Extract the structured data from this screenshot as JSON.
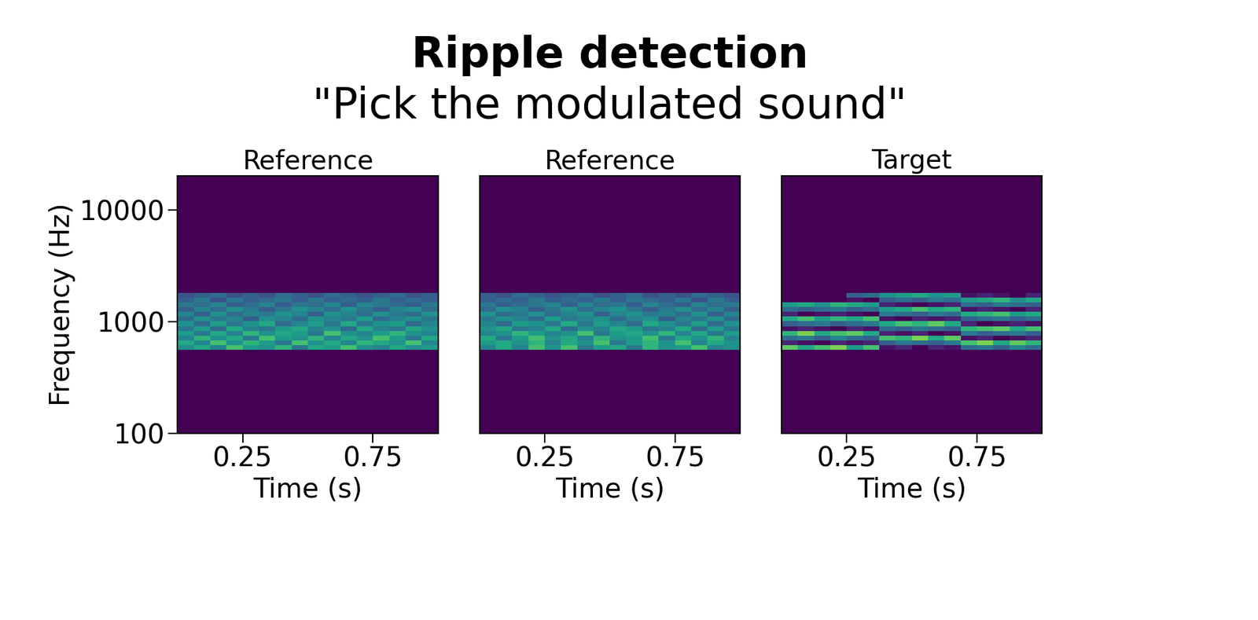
{
  "title": "Ripple detection",
  "subtitle": "\"Pick the modulated sound\"",
  "chart_data": [
    {
      "type": "heatmap",
      "title": "Reference",
      "xlabel": "Time (s)",
      "ylabel": "Frequency (Hz)",
      "xlim": [
        0,
        1
      ],
      "xticks": [
        0.25,
        0.75
      ],
      "ylim": [
        100,
        20000
      ],
      "yticks": [
        100,
        1000,
        10000
      ],
      "log": "y",
      "color_range": [
        0,
        1
      ],
      "time_edges": [
        0,
        0.0625,
        0.125,
        0.1875,
        0.25,
        0.3125,
        0.375,
        0.4375,
        0.5,
        0.5625,
        0.625,
        0.6875,
        0.75,
        0.8125,
        0.875,
        0.9375,
        1
      ],
      "freq_edges": [
        560,
        617,
        680,
        750,
        826,
        911,
        1004,
        1106,
        1219,
        1344,
        1481,
        1633,
        1800
      ],
      "cells": [
        [
          0.5,
          0.6,
          0.45,
          0.7,
          0.55,
          0.5,
          0.65,
          0.4,
          0.6,
          0.55,
          0.7,
          0.5,
          0.45,
          0.6,
          0.5,
          0.55
        ],
        [
          0.6,
          0.45,
          0.7,
          0.5,
          0.65,
          0.55,
          0.4,
          0.7,
          0.5,
          0.6,
          0.45,
          0.65,
          0.6,
          0.5,
          0.7,
          0.45
        ],
        [
          0.45,
          0.65,
          0.5,
          0.6,
          0.4,
          0.7,
          0.55,
          0.5,
          0.65,
          0.45,
          0.6,
          0.5,
          0.7,
          0.55,
          0.4,
          0.6
        ],
        [
          0.55,
          0.4,
          0.6,
          0.45,
          0.65,
          0.5,
          0.6,
          0.55,
          0.4,
          0.7,
          0.5,
          0.45,
          0.55,
          0.65,
          0.5,
          0.45
        ],
        [
          0.4,
          0.55,
          0.35,
          0.6,
          0.45,
          0.4,
          0.55,
          0.6,
          0.45,
          0.5,
          0.35,
          0.6,
          0.45,
          0.4,
          0.6,
          0.5
        ],
        [
          0.5,
          0.35,
          0.55,
          0.4,
          0.5,
          0.6,
          0.35,
          0.45,
          0.55,
          0.4,
          0.6,
          0.4,
          0.5,
          0.55,
          0.35,
          0.45
        ],
        [
          0.35,
          0.5,
          0.4,
          0.45,
          0.3,
          0.5,
          0.45,
          0.35,
          0.5,
          0.45,
          0.4,
          0.55,
          0.35,
          0.45,
          0.5,
          0.4
        ],
        [
          0.45,
          0.3,
          0.5,
          0.35,
          0.45,
          0.4,
          0.5,
          0.45,
          0.3,
          0.5,
          0.45,
          0.35,
          0.5,
          0.4,
          0.35,
          0.5
        ],
        [
          0.3,
          0.45,
          0.35,
          0.5,
          0.4,
          0.3,
          0.4,
          0.5,
          0.45,
          0.35,
          0.5,
          0.4,
          0.3,
          0.45,
          0.5,
          0.35
        ],
        [
          0.4,
          0.35,
          0.45,
          0.3,
          0.35,
          0.45,
          0.3,
          0.4,
          0.35,
          0.45,
          0.3,
          0.45,
          0.4,
          0.35,
          0.3,
          0.4
        ],
        [
          0.3,
          0.4,
          0.25,
          0.4,
          0.3,
          0.35,
          0.4,
          0.3,
          0.4,
          0.3,
          0.35,
          0.3,
          0.4,
          0.3,
          0.35,
          0.3
        ],
        [
          0.25,
          0.3,
          0.35,
          0.25,
          0.3,
          0.25,
          0.35,
          0.3,
          0.25,
          0.35,
          0.3,
          0.25,
          0.3,
          0.35,
          0.25,
          0.3
        ]
      ]
    },
    {
      "type": "heatmap",
      "title": "Reference",
      "xlabel": "Time (s)",
      "xlim": [
        0,
        1
      ],
      "xticks": [
        0.25,
        0.75
      ],
      "ylim": [
        100,
        20000
      ],
      "tick_labels": "x",
      "log": "y",
      "color_range": [
        0,
        1
      ],
      "time_edges": [
        0,
        0.0625,
        0.125,
        0.1875,
        0.25,
        0.3125,
        0.375,
        0.4375,
        0.5,
        0.5625,
        0.625,
        0.6875,
        0.75,
        0.8125,
        0.875,
        0.9375,
        1
      ],
      "freq_edges": [
        560,
        617,
        680,
        750,
        826,
        911,
        1004,
        1106,
        1219,
        1344,
        1481,
        1633,
        1800
      ],
      "cells": [
        [
          0.45,
          0.6,
          0.45,
          0.7,
          0.5,
          0.7,
          0.4,
          0.55,
          0.6,
          0.4,
          0.65,
          0.5,
          0.55,
          0.7,
          0.45,
          0.5
        ],
        [
          0.55,
          0.6,
          0.5,
          0.65,
          0.45,
          0.6,
          0.5,
          0.7,
          0.4,
          0.55,
          0.65,
          0.5,
          0.7,
          0.45,
          0.6,
          0.5
        ],
        [
          0.6,
          0.4,
          0.55,
          0.7,
          0.5,
          0.6,
          0.45,
          0.65,
          0.5,
          0.55,
          0.7,
          0.4,
          0.6,
          0.5,
          0.65,
          0.45
        ],
        [
          0.45,
          0.5,
          0.65,
          0.55,
          0.45,
          0.5,
          0.7,
          0.4,
          0.55,
          0.6,
          0.5,
          0.65,
          0.45,
          0.6,
          0.4,
          0.55
        ],
        [
          0.5,
          0.6,
          0.4,
          0.45,
          0.6,
          0.35,
          0.5,
          0.45,
          0.6,
          0.55,
          0.4,
          0.45,
          0.6,
          0.35,
          0.55,
          0.4
        ],
        [
          0.45,
          0.35,
          0.55,
          0.5,
          0.4,
          0.6,
          0.4,
          0.55,
          0.45,
          0.35,
          0.6,
          0.5,
          0.4,
          0.55,
          0.35,
          0.5
        ],
        [
          0.4,
          0.5,
          0.45,
          0.35,
          0.55,
          0.4,
          0.45,
          0.5,
          0.35,
          0.45,
          0.5,
          0.3,
          0.45,
          0.4,
          0.5,
          0.35
        ],
        [
          0.5,
          0.35,
          0.4,
          0.5,
          0.35,
          0.45,
          0.5,
          0.3,
          0.45,
          0.5,
          0.4,
          0.45,
          0.35,
          0.5,
          0.3,
          0.45
        ],
        [
          0.35,
          0.5,
          0.45,
          0.3,
          0.4,
          0.5,
          0.35,
          0.45,
          0.5,
          0.4,
          0.3,
          0.4,
          0.5,
          0.35,
          0.45,
          0.3
        ],
        [
          0.4,
          0.3,
          0.35,
          0.4,
          0.45,
          0.3,
          0.45,
          0.35,
          0.4,
          0.3,
          0.45,
          0.35,
          0.3,
          0.45,
          0.35,
          0.4
        ],
        [
          0.3,
          0.35,
          0.3,
          0.4,
          0.3,
          0.35,
          0.3,
          0.4,
          0.3,
          0.4,
          0.35,
          0.3,
          0.4,
          0.25,
          0.4,
          0.3
        ],
        [
          0.3,
          0.25,
          0.35,
          0.3,
          0.25,
          0.3,
          0.35,
          0.25,
          0.3,
          0.35,
          0.25,
          0.3,
          0.25,
          0.35,
          0.3,
          0.25
        ]
      ]
    },
    {
      "type": "heatmap",
      "title": "Target",
      "xlabel": "Time (s)",
      "xlim": [
        0,
        1
      ],
      "xticks": [
        0.25,
        0.75
      ],
      "ylim": [
        100,
        20000
      ],
      "tick_labels": "x",
      "log": "y",
      "color_range": [
        0,
        1
      ],
      "time_edges": [
        0,
        0.0625,
        0.125,
        0.1875,
        0.25,
        0.3125,
        0.375,
        0.4375,
        0.5,
        0.5625,
        0.625,
        0.6875,
        0.75,
        0.8125,
        0.875,
        0.9375,
        1
      ],
      "freq_edges": [
        560,
        617,
        680,
        750,
        826,
        911,
        1004,
        1106,
        1219,
        1344,
        1481,
        1633,
        1800
      ],
      "cells": [
        [
          0.75,
          0.6,
          0.7,
          0.8,
          0.55,
          0.7,
          0.05,
          0.1,
          0.0,
          0.1,
          0.05,
          0.35,
          0.4,
          0.3,
          0.45,
          0.35
        ],
        [
          0.1,
          0.05,
          0.0,
          0.1,
          0.05,
          0.1,
          0.3,
          0.4,
          0.35,
          0.3,
          0.4,
          0.7,
          0.8,
          0.6,
          0.75,
          0.65
        ],
        [
          0.35,
          0.4,
          0.3,
          0.45,
          0.35,
          0.3,
          0.7,
          0.65,
          0.8,
          0.6,
          0.75,
          0.05,
          0.1,
          0.0,
          0.05,
          0.1
        ],
        [
          0.65,
          0.8,
          0.6,
          0.7,
          0.75,
          0.6,
          0.1,
          0.05,
          0.1,
          0.0,
          0.05,
          0.4,
          0.3,
          0.35,
          0.4,
          0.3
        ],
        [
          0.05,
          0.1,
          0.05,
          0.0,
          0.1,
          0.05,
          0.35,
          0.3,
          0.4,
          0.35,
          0.3,
          0.65,
          0.7,
          0.75,
          0.6,
          0.7
        ],
        [
          0.3,
          0.35,
          0.4,
          0.3,
          0.35,
          0.4,
          0.6,
          0.7,
          0.65,
          0.75,
          0.6,
          0.1,
          0.0,
          0.05,
          0.1,
          0.05
        ],
        [
          0.6,
          0.7,
          0.55,
          0.65,
          0.6,
          0.7,
          0.05,
          0.0,
          0.1,
          0.05,
          0.1,
          0.3,
          0.35,
          0.4,
          0.3,
          0.35
        ],
        [
          0.1,
          0.0,
          0.05,
          0.1,
          0.05,
          0.0,
          0.4,
          0.35,
          0.3,
          0.4,
          0.35,
          0.6,
          0.65,
          0.7,
          0.55,
          0.6
        ],
        [
          0.35,
          0.3,
          0.35,
          0.4,
          0.3,
          0.35,
          0.55,
          0.6,
          0.7,
          0.6,
          0.65,
          0.05,
          0.1,
          0.05,
          0.0,
          0.1
        ],
        [
          0.55,
          0.6,
          0.5,
          0.65,
          0.6,
          0.55,
          0.1,
          0.05,
          0.0,
          0.05,
          0.1,
          0.35,
          0.3,
          0.4,
          0.35,
          0.3
        ],
        [
          0.0,
          0.0,
          0.0,
          0.0,
          0.05,
          0.0,
          0.3,
          0.35,
          0.3,
          0.4,
          0.35,
          0.55,
          0.6,
          0.65,
          0.5,
          0.6
        ],
        [
          0.0,
          0.0,
          0.0,
          0.0,
          0.3,
          0.35,
          0.5,
          0.55,
          0.6,
          0.5,
          0.55,
          0.05,
          0.1,
          0.05,
          0.0,
          0.1
        ]
      ]
    }
  ]
}
